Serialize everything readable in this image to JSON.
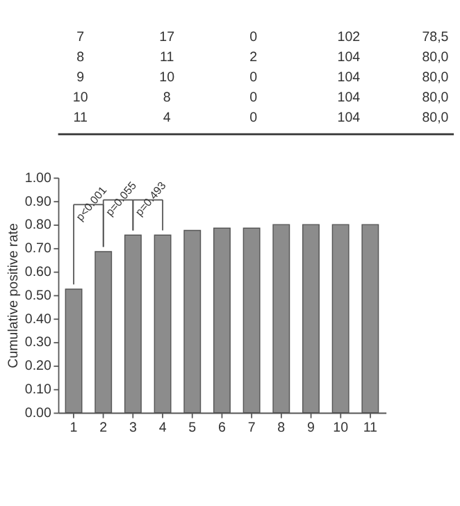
{
  "chart_data": {
    "type": "bar",
    "ylabel": "Cumulative positive rate",
    "categories": [
      "1",
      "2",
      "3",
      "4",
      "5",
      "6",
      "7",
      "8",
      "9",
      "10",
      "11"
    ],
    "values": [
      0.525,
      0.685,
      0.755,
      0.755,
      0.775,
      0.785,
      0.785,
      0.8,
      0.8,
      0.8,
      0.8
    ],
    "color": "#8c8c8c",
    "ylim": [
      0,
      1
    ],
    "yticks": [
      {
        "value": 0,
        "label": "0.00"
      },
      {
        "value": 0.1,
        "label": "0.10"
      },
      {
        "value": 0.2,
        "label": "0.20"
      },
      {
        "value": 0.3,
        "label": "0.30"
      },
      {
        "value": 0.4,
        "label": "0.40"
      },
      {
        "value": 0.5,
        "label": "0.50"
      },
      {
        "value": 0.6,
        "label": "0.60"
      },
      {
        "value": 0.7,
        "label": "0.70"
      },
      {
        "value": 0.8,
        "label": "0.80"
      },
      {
        "value": 0.9,
        "label": "0.90"
      },
      {
        "value": 1,
        "label": "1.00"
      }
    ],
    "grid": false,
    "annotations": [
      {
        "text": "p<0.001",
        "x": "1",
        "y": 0.525
      },
      {
        "text": "p=0.055",
        "x": "2",
        "y": 0.685
      },
      {
        "text": "p=0.493",
        "x": "3",
        "y": 0.755
      },
      "7 17 0 102 78,5",
      "8 11 2 104 80,0",
      "9 10 0 104 80,0",
      "10 8 0 104 80,0",
      "11 4 0 104 80,0"
    ]
  }
}
